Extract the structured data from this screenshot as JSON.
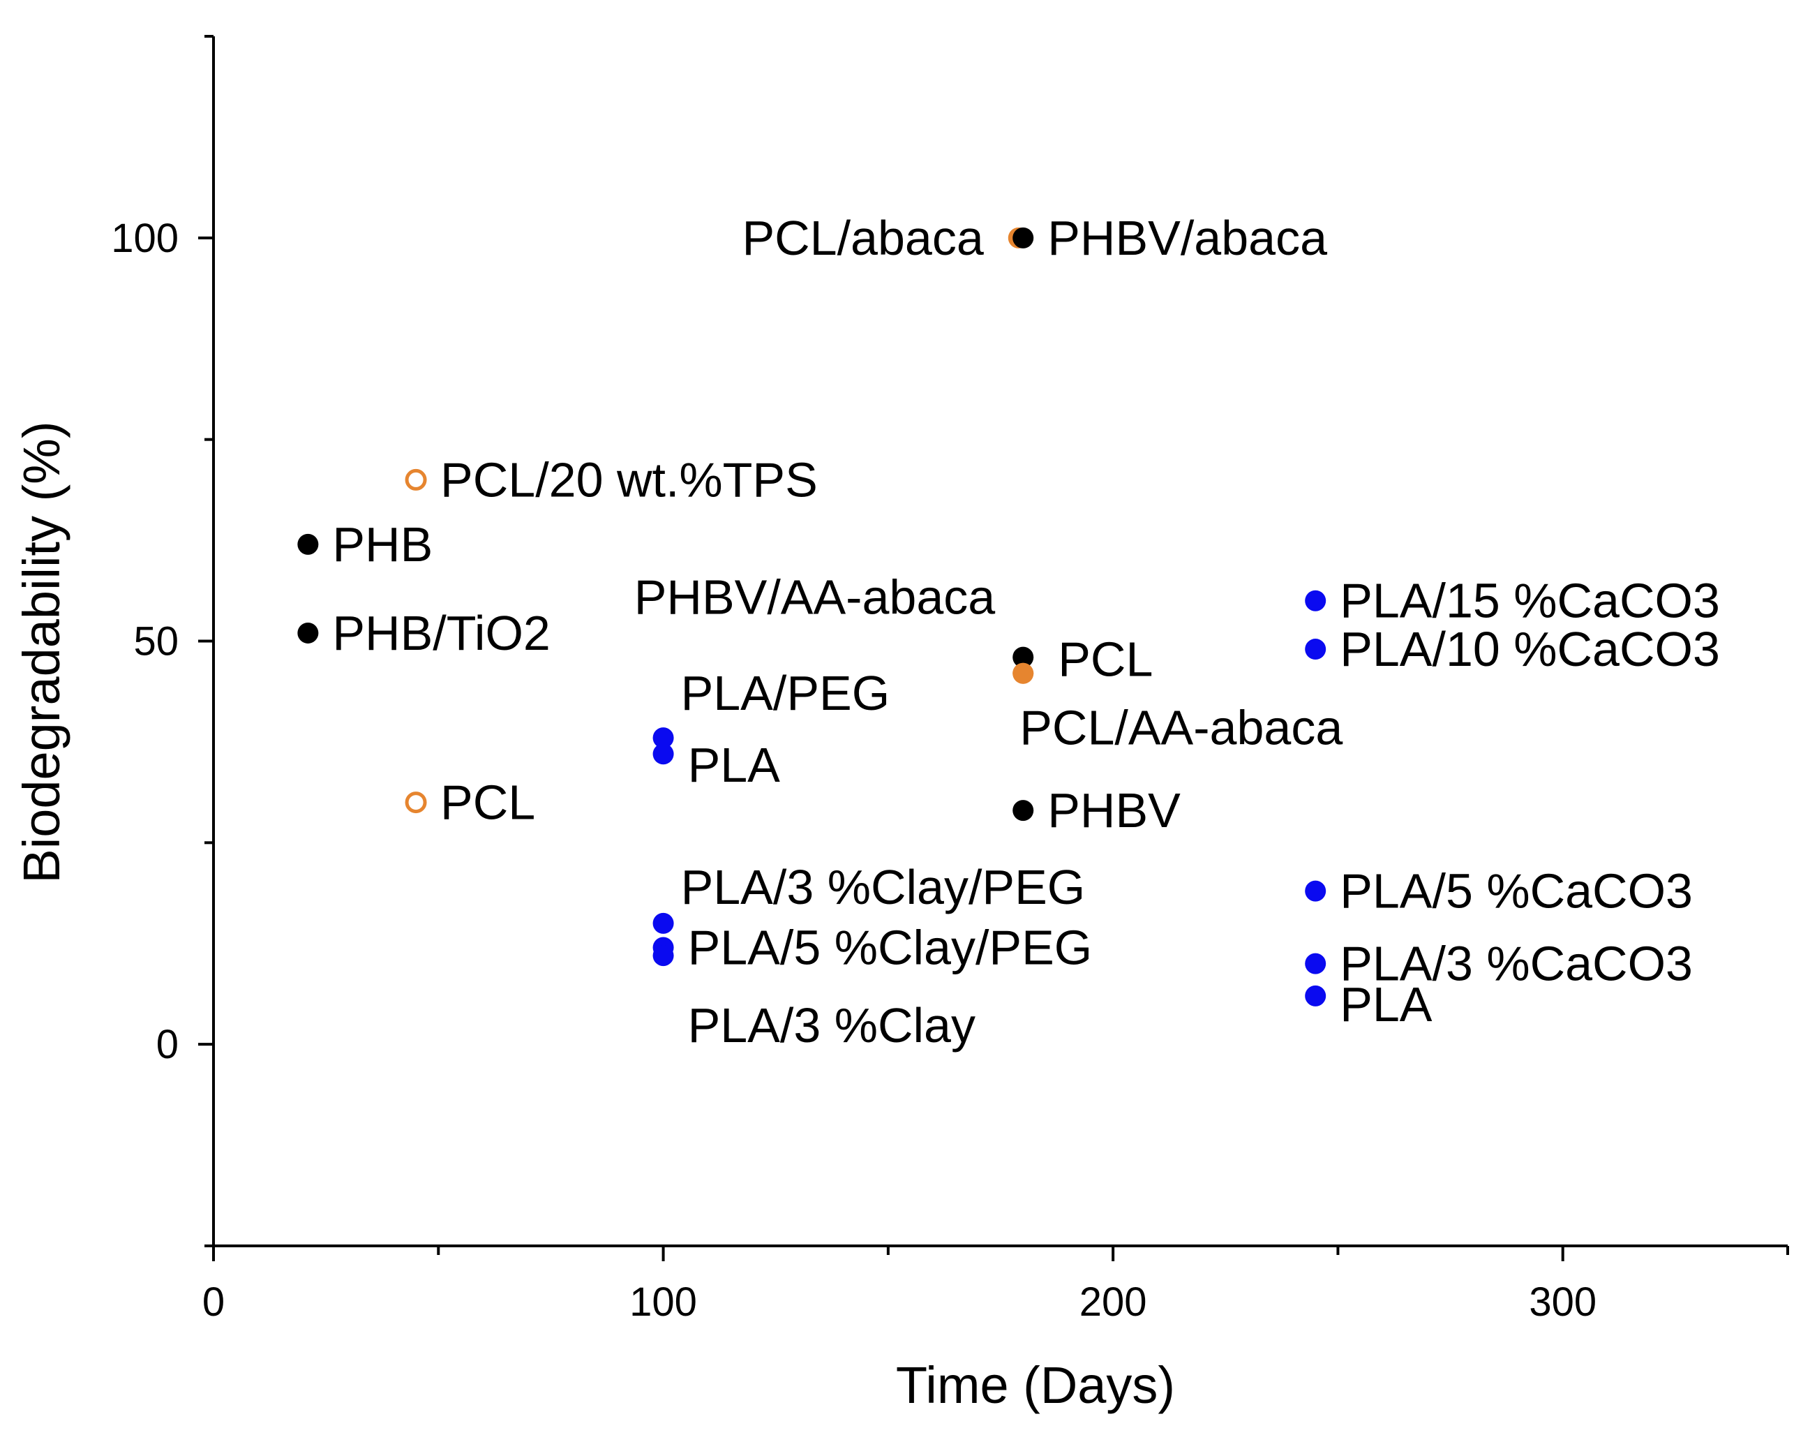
{
  "chart_data": {
    "type": "scatter",
    "title": "",
    "xlabel": "Time (Days)",
    "ylabel": "Biodegradability (%)",
    "xlim": [
      0,
      350
    ],
    "ylim": [
      -25,
      125
    ],
    "xticks": [
      0,
      100,
      200,
      300
    ],
    "yticks": [
      0,
      50,
      100
    ],
    "colors": {
      "black": "#000000",
      "orange": "#e6852f",
      "blue": "#0a0af0"
    },
    "points": [
      {
        "label": "PHB",
        "x": 21,
        "y": 62,
        "color": "black",
        "marker": "filled",
        "label_side": "right"
      },
      {
        "label": "PHB/TiO2",
        "x": 21,
        "y": 51,
        "color": "black",
        "marker": "filled",
        "label_side": "right"
      },
      {
        "label": "PCL/20 wt.%TPS",
        "x": 45,
        "y": 70,
        "color": "orange",
        "marker": "open",
        "label_side": "right"
      },
      {
        "label": "PCL",
        "x": 45,
        "y": 30,
        "color": "orange",
        "marker": "open",
        "label_side": "right"
      },
      {
        "label": "PLA/PEG",
        "x": 100,
        "y": 38,
        "color": "blue",
        "marker": "filled",
        "label_side": "above-right"
      },
      {
        "label": "PLA",
        "x": 100,
        "y": 36,
        "color": "blue",
        "marker": "filled",
        "label_side": "below-right"
      },
      {
        "label": "PLA/3 %Clay/PEG",
        "x": 100,
        "y": 15,
        "color": "blue",
        "marker": "filled",
        "label_side": "above-right"
      },
      {
        "label": "PLA/5 %Clay/PEG",
        "x": 100,
        "y": 12,
        "color": "blue",
        "marker": "filled",
        "label_side": "right"
      },
      {
        "label": "PLA/3 %Clay",
        "x": 100,
        "y": 11,
        "color": "blue",
        "marker": "filled",
        "label_side": "below-right"
      },
      {
        "label": "PCL/abaca",
        "x": 179,
        "y": 100,
        "color": "orange",
        "marker": "filled",
        "label_side": "left"
      },
      {
        "label": "PHBV/abaca",
        "x": 180,
        "y": 100,
        "color": "black",
        "marker": "filled",
        "label_side": "right"
      },
      {
        "label": "PHBV/AA-abaca",
        "x": 180,
        "y": 48,
        "color": "black",
        "marker": "filled",
        "label_side": "above-left"
      },
      {
        "label": "PCL",
        "x": 180,
        "y": 46,
        "color": "orange",
        "marker": "filled",
        "label_side": "right"
      },
      {
        "label": "PCL/AA-abaca",
        "x": 180,
        "y": 46,
        "color": "orange",
        "marker": "filled",
        "label_side": "below"
      },
      {
        "label": "PHBV",
        "x": 180,
        "y": 29,
        "color": "black",
        "marker": "filled",
        "label_side": "right"
      },
      {
        "label": "PLA/15 %CaCO3",
        "x": 245,
        "y": 55,
        "color": "blue",
        "marker": "filled",
        "label_side": "right"
      },
      {
        "label": "PLA/10 %CaCO3",
        "x": 245,
        "y": 49,
        "color": "blue",
        "marker": "filled",
        "label_side": "right"
      },
      {
        "label": "PLA/5 %CaCO3",
        "x": 245,
        "y": 19,
        "color": "blue",
        "marker": "filled",
        "label_side": "right"
      },
      {
        "label": "PLA/3 %CaCO3",
        "x": 245,
        "y": 10,
        "color": "blue",
        "marker": "filled",
        "label_side": "right"
      },
      {
        "label": "PLA",
        "x": 245,
        "y": 6,
        "color": "blue",
        "marker": "filled",
        "label_side": "below-right"
      }
    ]
  }
}
